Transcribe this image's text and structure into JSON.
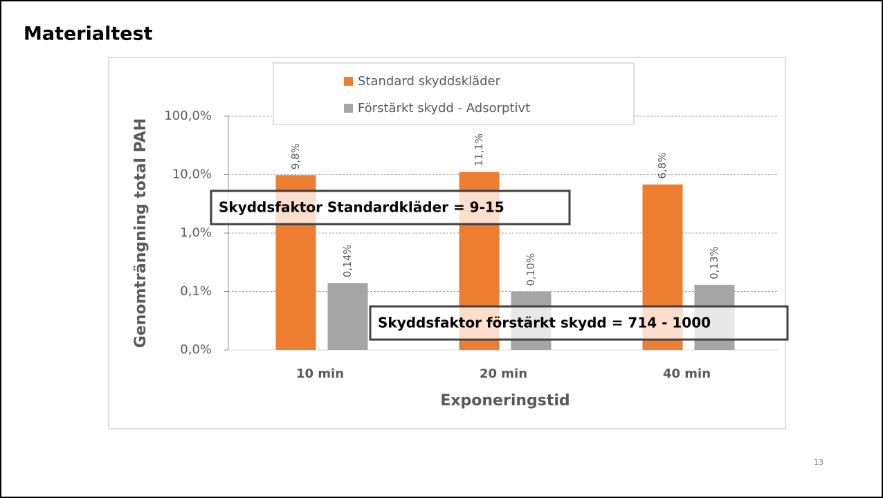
{
  "slide": {
    "title": "Materialtest",
    "page_number": "13"
  },
  "chart_data": {
    "type": "bar",
    "y_log_scale": true,
    "grid": true,
    "y_axis_label": "Genomträngning total PAH",
    "x_axis_label": "Exponeringstid",
    "categories": [
      "10 min",
      "20 min",
      "40 min"
    ],
    "series": [
      {
        "name": "Standard skyddskläder",
        "color": "#ed7d31",
        "values": [
          9.8,
          11.1,
          6.8
        ],
        "value_labels": [
          "9,8%",
          "11,1%",
          "6,8%"
        ]
      },
      {
        "name": "Förstärkt skydd - Adsorptivt",
        "color": "#a5a5a5",
        "values": [
          0.14,
          0.1,
          0.13
        ],
        "value_labels": [
          "0,14%",
          "0,10%",
          "0,13%"
        ]
      }
    ],
    "ylim": [
      0.01,
      100
    ],
    "yticks": [
      {
        "value": 0.01,
        "label": "0,0%"
      },
      {
        "value": 0.1,
        "label": "0,1%"
      },
      {
        "value": 1,
        "label": "1,0%"
      },
      {
        "value": 10,
        "label": "10,0%"
      },
      {
        "value": 100,
        "label": "100,0%"
      }
    ],
    "annotations": [
      "Skyddsfaktor Standardkläder = 9-15",
      "Skyddsfaktor förstärkt skydd = 714 - 1000"
    ]
  }
}
